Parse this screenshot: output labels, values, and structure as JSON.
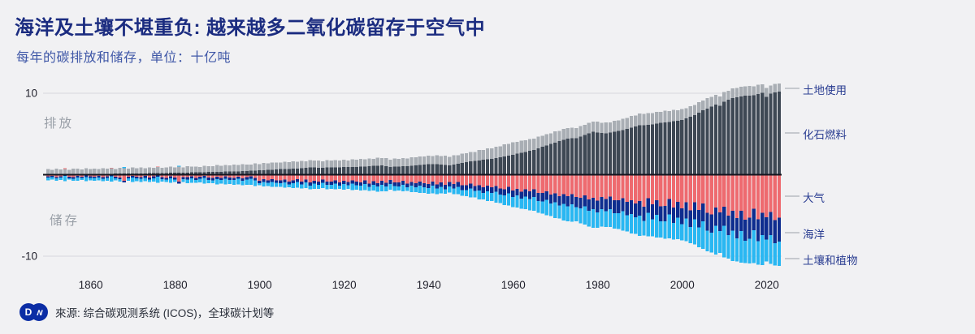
{
  "page": {
    "background": "#f1f1f3"
  },
  "header": {
    "title": "海洋及土壤不堪重负: 越来越多二氧化碳留存于空气中",
    "subtitle": "每年的碳排放和储存，单位：十亿吨"
  },
  "footer": {
    "logo_d": "D",
    "logo_w": "w",
    "source": "來源: 综合碳观测系统 (ICOS)，全球碳计划等"
  },
  "chart_data": {
    "type": "bar",
    "stacked": true,
    "title": "海洋及土壤不堪重负: 越来越多二氧化碳留存于空气中",
    "subtitle": "每年的碳排放和储存，单位：十亿吨",
    "unit": "十亿吨",
    "year_start": 1850,
    "year_end": 2023,
    "x_ticks": [
      1860,
      1880,
      1900,
      1920,
      1940,
      1960,
      1980,
      2000,
      2020
    ],
    "y_ticks": [
      {
        "value": 10,
        "label": "10"
      },
      {
        "value": -10,
        "label": "-10"
      }
    ],
    "ylim": [
      -12,
      12
    ],
    "grid": "horizontal-only",
    "area_labels": {
      "emissions": "排放",
      "storage": "储存"
    },
    "colors": {
      "gridline": "#d8d8dd",
      "zero_line": "#15151f",
      "leader_line": "#9aa1a9",
      "axis_text": "#23232e",
      "annotation_text": "#2b3e92",
      "logo_blue": "#0b2da5"
    },
    "series": [
      {
        "id": "fossil",
        "name": "化石燃料",
        "color": "#3e4854",
        "direction": "up",
        "values": [
          0.05,
          0.05,
          0.06,
          0.06,
          0.07,
          0.07,
          0.07,
          0.08,
          0.08,
          0.09,
          0.09,
          0.1,
          0.1,
          0.11,
          0.11,
          0.12,
          0.13,
          0.13,
          0.14,
          0.14,
          0.15,
          0.16,
          0.17,
          0.17,
          0.18,
          0.19,
          0.2,
          0.21,
          0.22,
          0.23,
          0.24,
          0.25,
          0.26,
          0.27,
          0.28,
          0.29,
          0.3,
          0.32,
          0.33,
          0.35,
          0.36,
          0.37,
          0.38,
          0.4,
          0.41,
          0.42,
          0.44,
          0.46,
          0.49,
          0.51,
          0.53,
          0.56,
          0.59,
          0.62,
          0.65,
          0.68,
          0.7,
          0.72,
          0.75,
          0.77,
          0.79,
          0.83,
          0.88,
          0.92,
          0.85,
          0.86,
          0.88,
          0.89,
          0.9,
          0.92,
          0.93,
          0.94,
          0.96,
          0.97,
          0.99,
          1.0,
          1.04,
          1.08,
          1.11,
          1.15,
          1.05,
          0.95,
          0.98,
          1.0,
          1.03,
          1.05,
          1.1,
          1.15,
          1.2,
          1.25,
          1.27,
          1.28,
          1.3,
          1.25,
          1.2,
          1.15,
          1.25,
          1.34,
          1.44,
          1.53,
          1.63,
          1.69,
          1.76,
          1.82,
          1.89,
          1.95,
          2.05,
          2.15,
          2.25,
          2.35,
          2.45,
          2.57,
          2.69,
          2.81,
          2.93,
          3.05,
          3.23,
          3.41,
          3.59,
          3.77,
          3.95,
          4.12,
          4.28,
          4.45,
          4.48,
          4.5,
          4.69,
          4.88,
          5.06,
          5.25,
          5.18,
          5.12,
          5.05,
          5.15,
          5.25,
          5.35,
          5.49,
          5.63,
          5.77,
          5.91,
          6.05,
          6.08,
          6.1,
          6.18,
          6.27,
          6.35,
          6.42,
          6.49,
          6.56,
          6.63,
          6.7,
          6.9,
          7.1,
          7.3,
          7.6,
          7.9,
          8.13,
          8.37,
          8.6,
          8.45,
          8.95,
          9.18,
          9.4,
          9.5,
          9.6,
          9.7,
          9.72,
          9.75,
          9.9,
          10.05,
          9.55,
          9.95,
          10.1,
          10.2
        ]
      },
      {
        "id": "landuse",
        "name": "土地使用",
        "color": "#a9aeb4",
        "direction": "up",
        "values": [
          0.65,
          0.55,
          0.69,
          0.58,
          0.64,
          0.55,
          0.66,
          0.69,
          0.58,
          0.73,
          0.61,
          0.67,
          0.6,
          0.7,
          0.63,
          0.68,
          0.59,
          0.71,
          0.66,
          0.62,
          0.75,
          0.66,
          0.72,
          0.63,
          0.73,
          0.68,
          0.74,
          0.65,
          0.7,
          0.76,
          0.68,
          0.74,
          0.66,
          0.76,
          0.7,
          0.72,
          0.64,
          0.78,
          0.72,
          0.68,
          0.82,
          0.72,
          0.8,
          0.74,
          0.83,
          0.76,
          0.85,
          0.78,
          0.74,
          0.86,
          0.78,
          0.86,
          0.8,
          0.88,
          0.82,
          0.79,
          0.87,
          0.83,
          0.9,
          0.81,
          0.88,
          0.8,
          0.89,
          0.83,
          0.87,
          0.79,
          0.9,
          0.84,
          0.88,
          0.81,
          0.9,
          0.82,
          0.91,
          0.85,
          0.93,
          0.87,
          0.95,
          0.88,
          0.96,
          0.9,
          0.98,
          0.9,
          1.0,
          0.93,
          1.02,
          0.95,
          1.04,
          0.97,
          1.05,
          0.99,
          1.08,
          1.0,
          1.1,
          1.03,
          1.12,
          1.05,
          1.14,
          1.07,
          1.15,
          1.1,
          1.18,
          1.12,
          1.25,
          1.2,
          1.32,
          1.28,
          1.4,
          1.35,
          1.48,
          1.42,
          1.52,
          1.45,
          1.5,
          1.42,
          1.47,
          1.38,
          1.44,
          1.35,
          1.4,
          1.32,
          1.35,
          1.27,
          1.33,
          1.25,
          1.3,
          1.22,
          1.28,
          1.24,
          1.32,
          1.26,
          1.34,
          1.27,
          1.36,
          1.29,
          1.38,
          1.31,
          1.4,
          1.34,
          1.44,
          1.37,
          1.48,
          1.4,
          1.47,
          1.38,
          1.44,
          1.36,
          1.42,
          1.33,
          1.38,
          1.3,
          1.34,
          1.27,
          1.32,
          1.24,
          1.29,
          1.22,
          1.26,
          1.18,
          1.22,
          1.15,
          1.18,
          1.12,
          1.2,
          1.14,
          1.22,
          1.16,
          1.19,
          1.1,
          1.14,
          1.06,
          1.08,
          1.02,
          1.05,
          1.0
        ]
      },
      {
        "id": "atmosphere",
        "name": "大气",
        "color": "#ee6a6f",
        "direction": "down",
        "values": [
          0.22,
          0.14,
          0.29,
          0.18,
          -0.08,
          0.26,
          0.31,
          0.16,
          0.23,
          0.12,
          0.22,
          0.23,
          0.14,
          0.31,
          0.19,
          -0.06,
          0.27,
          0.33,
          0.75,
          0.25,
          0.16,
          0.26,
          0.28,
          0.17,
          0.36,
          0.22,
          -0.05,
          0.32,
          0.38,
          0.2,
          0.33,
          0.86,
          0.3,
          0.32,
          0.19,
          0.4,
          0.25,
          0.15,
          0.36,
          0.42,
          0.27,
          0.39,
          0.22,
          0.35,
          0.38,
          0.23,
          0.46,
          0.29,
          0.19,
          0.42,
          0.74,
          0.57,
          0.7,
          0.56,
          0.69,
          0.72,
          0.6,
          0.84,
          0.69,
          0.56,
          0.83,
          0.6,
          0.96,
          0.73,
          0.85,
          0.6,
          0.84,
          0.85,
          0.68,
          0.93,
          0.76,
          0.88,
          0.68,
          0.87,
          0.94,
          0.7,
          1.07,
          0.81,
          1.02,
          0.77,
          1.01,
          0.66,
          0.95,
          0.96,
          0.77,
          1.08,
          0.88,
          1.05,
          0.85,
          1.06,
          1.15,
          0.85,
          1.19,
          0.97,
          1.23,
          0.9,
          1.14,
          0.91,
          1.29,
          1.28,
          1.07,
          1.39,
          1.28,
          1.56,
          1.34,
          1.52,
          1.37,
          1.71,
          1.79,
          1.5,
          1.93,
          1.73,
          2.1,
          1.79,
          2.06,
          1.8,
          2.24,
          2.26,
          2.04,
          2.44,
          2.3,
          2.65,
          2.4,
          2.66,
          2.4,
          2.72,
          2.82,
          2.53,
          3.03,
          2.83,
          3.16,
          2.75,
          2.98,
          2.69,
          3.14,
          3.14,
          2.87,
          3.31,
          3.13,
          3.52,
          3.25,
          3.92,
          2.91,
          3.65,
          3.12,
          3.87,
          3.83,
          2.97,
          4.02,
          3.32,
          4.12,
          3.38,
          4.39,
          3.39,
          4.35,
          3.55,
          4.68,
          4.9,
          4.02,
          4.62,
          3.91,
          5.04,
          4.42,
          5.34,
          4.42,
          5.54,
          5.26,
          4.18,
          5.47,
          4.7,
          5.23,
          4.59,
          5.57,
          5.29
        ]
      },
      {
        "id": "ocean",
        "name": "海洋",
        "color": "#0e2d8f",
        "direction": "down",
        "values": [
          0.15,
          0.15,
          0.16,
          0.16,
          0.16,
          0.17,
          0.17,
          0.17,
          0.18,
          0.18,
          0.18,
          0.18,
          0.19,
          0.19,
          0.19,
          0.2,
          0.2,
          0.2,
          0.21,
          0.21,
          0.21,
          0.21,
          0.22,
          0.22,
          0.22,
          0.23,
          0.23,
          0.23,
          0.24,
          0.24,
          0.25,
          0.25,
          0.26,
          0.26,
          0.26,
          0.26,
          0.27,
          0.27,
          0.27,
          0.27,
          0.28,
          0.28,
          0.28,
          0.28,
          0.29,
          0.29,
          0.29,
          0.29,
          0.3,
          0.3,
          0.3,
          0.31,
          0.31,
          0.32,
          0.32,
          0.33,
          0.33,
          0.34,
          0.34,
          0.35,
          0.35,
          0.36,
          0.36,
          0.37,
          0.37,
          0.38,
          0.38,
          0.39,
          0.39,
          0.4,
          0.4,
          0.41,
          0.41,
          0.42,
          0.42,
          0.43,
          0.43,
          0.44,
          0.44,
          0.45,
          0.45,
          0.46,
          0.46,
          0.47,
          0.47,
          0.48,
          0.48,
          0.49,
          0.49,
          0.5,
          0.5,
          0.51,
          0.52,
          0.53,
          0.54,
          0.55,
          0.56,
          0.57,
          0.58,
          0.59,
          0.6,
          0.62,
          0.64,
          0.66,
          0.68,
          0.7,
          0.72,
          0.74,
          0.76,
          0.78,
          0.8,
          0.83,
          0.86,
          0.89,
          0.92,
          0.95,
          0.98,
          1.01,
          1.04,
          1.07,
          1.1,
          1.14,
          1.17,
          1.21,
          1.24,
          1.28,
          1.31,
          1.35,
          1.38,
          1.42,
          1.45,
          1.48,
          1.51,
          1.54,
          1.57,
          1.6,
          1.63,
          1.66,
          1.69,
          1.72,
          1.75,
          1.77,
          1.79,
          1.81,
          1.83,
          1.85,
          1.87,
          1.89,
          1.91,
          1.93,
          1.95,
          1.99,
          2.03,
          2.07,
          2.11,
          2.15,
          2.19,
          2.23,
          2.27,
          2.31,
          2.35,
          2.39,
          2.43,
          2.47,
          2.51,
          2.55,
          2.59,
          2.63,
          2.67,
          2.71,
          2.75,
          2.8,
          2.85,
          2.9
        ]
      },
      {
        "id": "land_sink",
        "name": "土壤和植物",
        "color": "#29b7f2",
        "direction": "down",
        "values": [
          0.33,
          0.31,
          0.3,
          0.3,
          0.63,
          0.19,
          0.25,
          0.44,
          0.25,
          0.52,
          0.3,
          0.36,
          0.37,
          0.31,
          0.36,
          0.66,
          0.25,
          0.31,
          -0.16,
          0.3,
          0.53,
          0.35,
          0.39,
          0.41,
          0.33,
          0.42,
          0.76,
          0.31,
          0.3,
          0.55,
          0.34,
          -0.12,
          0.36,
          0.45,
          0.53,
          0.35,
          0.42,
          0.68,
          0.42,
          0.34,
          0.63,
          0.42,
          0.68,
          0.51,
          0.57,
          0.66,
          0.54,
          0.66,
          0.74,
          0.65,
          0.27,
          0.54,
          0.38,
          0.62,
          0.46,
          0.42,
          0.64,
          0.37,
          0.62,
          0.67,
          0.49,
          0.67,
          0.45,
          0.65,
          0.5,
          0.67,
          0.56,
          0.49,
          0.71,
          0.4,
          0.67,
          0.47,
          0.78,
          0.53,
          0.56,
          0.74,
          0.49,
          0.71,
          0.61,
          0.83,
          0.57,
          0.73,
          0.57,
          0.5,
          0.81,
          0.44,
          0.78,
          0.58,
          0.91,
          0.68,
          0.7,
          0.92,
          0.69,
          0.78,
          0.55,
          0.75,
          0.69,
          0.93,
          0.72,
          0.76,
          1.14,
          0.8,
          1.09,
          0.8,
          1.19,
          1.01,
          1.36,
          1.05,
          1.18,
          1.49,
          1.24,
          1.46,
          1.23,
          1.55,
          1.42,
          1.68,
          1.45,
          1.49,
          1.91,
          1.58,
          1.9,
          1.6,
          2.04,
          1.83,
          2.14,
          1.72,
          1.84,
          2.24,
          1.97,
          2.26,
          1.91,
          2.16,
          1.92,
          2.21,
          1.92,
          1.92,
          2.39,
          2.0,
          2.39,
          2.04,
          2.53,
          1.79,
          2.87,
          2.1,
          2.76,
          1.99,
          2.14,
          2.96,
          2.01,
          2.68,
          1.97,
          2.8,
          2.0,
          3.08,
          2.43,
          3.42,
          2.52,
          2.42,
          3.53,
          2.67,
          3.87,
          2.87,
          3.75,
          2.83,
          3.89,
          2.77,
          3.06,
          4.04,
          2.9,
          3.7,
          2.65,
          3.58,
          2.73,
          3.01
        ]
      }
    ]
  }
}
